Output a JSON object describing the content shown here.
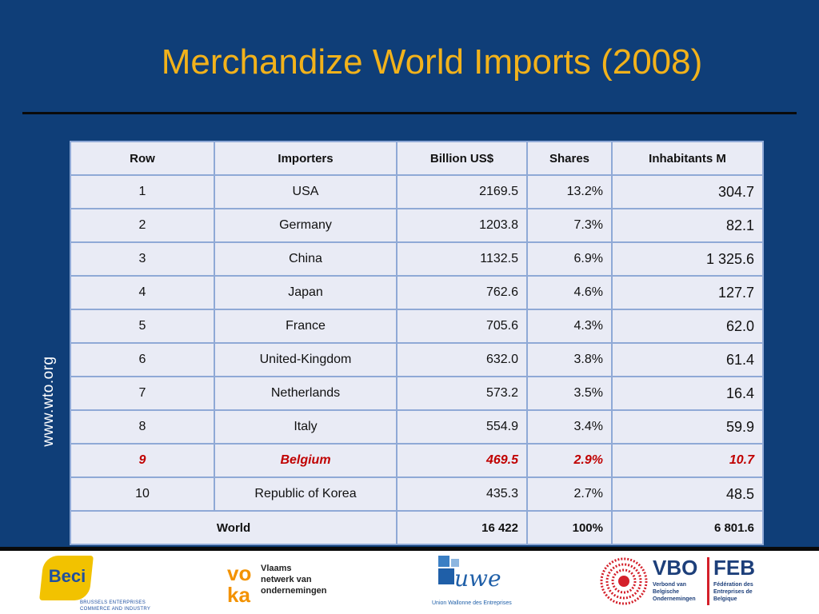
{
  "slide": {
    "title": "Merchandize World Imports (2008)",
    "side_url": "www.wto.org"
  },
  "table": {
    "headers": [
      "Row",
      "Importers",
      "Billion US$",
      "Shares",
      "Inhabitants M"
    ],
    "rows": [
      {
        "row": "1",
        "importer": "USA",
        "billion": "2169.5",
        "share": "13.2%",
        "inhabitants": "304.7"
      },
      {
        "row": "2",
        "importer": "Germany",
        "billion": "1203.8",
        "share": "7.3%",
        "inhabitants": "82.1"
      },
      {
        "row": "3",
        "importer": "China",
        "billion": "1132.5",
        "share": "6.9%",
        "inhabitants": "1 325.6"
      },
      {
        "row": "4",
        "importer": "Japan",
        "billion": "762.6",
        "share": "4.6%",
        "inhabitants": "127.7"
      },
      {
        "row": "5",
        "importer": "France",
        "billion": "705.6",
        "share": "4.3%",
        "inhabitants": "62.0"
      },
      {
        "row": "6",
        "importer": "United-Kingdom",
        "billion": "632.0",
        "share": "3.8%",
        "inhabitants": "61.4"
      },
      {
        "row": "7",
        "importer": "Netherlands",
        "billion": "573.2",
        "share": "3.5%",
        "inhabitants": "16.4"
      },
      {
        "row": "8",
        "importer": "Italy",
        "billion": "554.9",
        "share": "3.4%",
        "inhabitants": "59.9"
      },
      {
        "row": "9",
        "importer": "Belgium",
        "billion": "469.5",
        "share": "2.9%",
        "inhabitants": "10.7"
      },
      {
        "row": "10",
        "importer": "Republic of Korea",
        "billion": "435.3",
        "share": "2.7%",
        "inhabitants": "48.5"
      }
    ],
    "total": {
      "label": "World",
      "billion": "16 422",
      "share": "100%",
      "inhabitants": "6 801.6"
    },
    "highlight_color": "#c00000"
  },
  "logos": {
    "beci": {
      "name": "Beci",
      "tagline_1": "BRUSSELS ENTERPRISES",
      "tagline_2": "COMMERCE AND INDUSTRY"
    },
    "voka": {
      "mark": "voka",
      "line_1": "Vlaams",
      "line_2": "netwerk van",
      "line_3": "ondernemingen"
    },
    "uwe": {
      "mark": "uwe",
      "caption": "Union Wallonne des Entreprises"
    },
    "vbo_feb": {
      "vbo": "VBO",
      "feb": "FEB",
      "vbo_lines": [
        "Verbond van",
        "Belgische",
        "Ondernemingen"
      ],
      "feb_lines": [
        "Fédération des",
        "Entreprises de",
        "Belgique"
      ]
    }
  },
  "colors": {
    "background": "#0f3e78",
    "title": "#f2b21b",
    "table_fill": "#e9ebf5",
    "table_border": "#8fa9d6"
  }
}
